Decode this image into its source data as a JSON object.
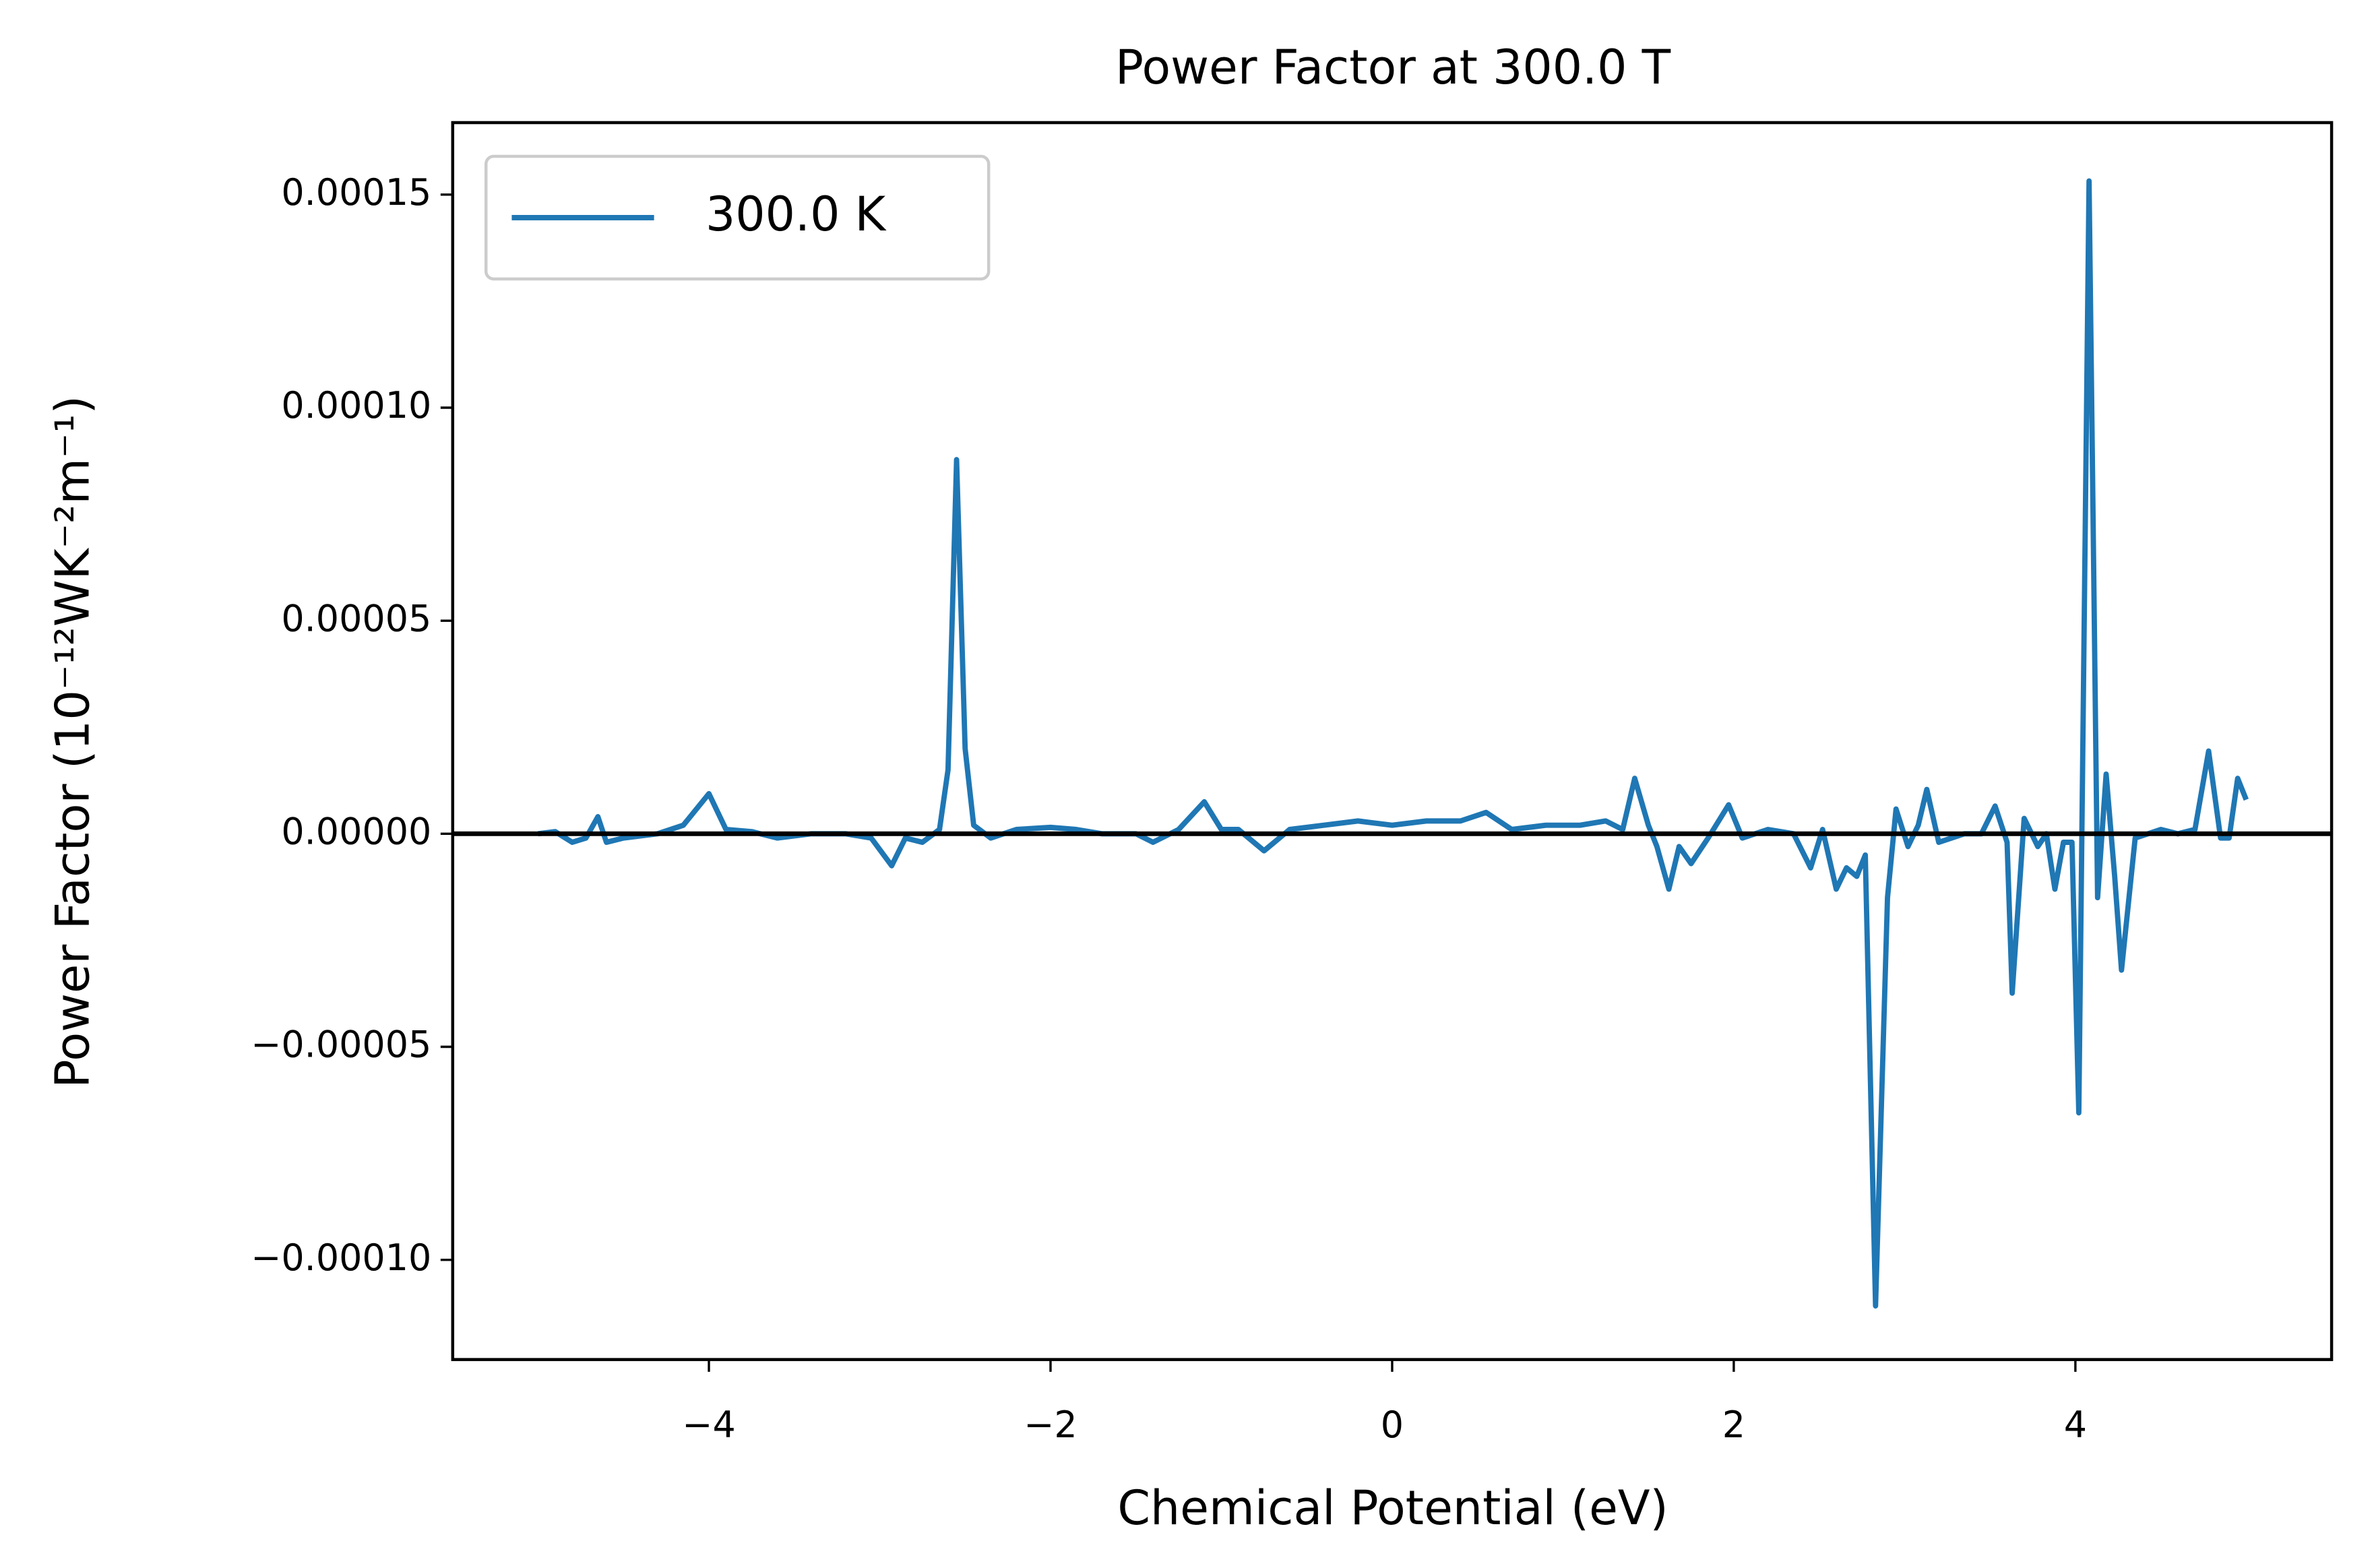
{
  "chart_data": {
    "type": "line",
    "title": "Power Factor at 300.0 T",
    "xlabel": "Chemical Potential (eV)",
    "ylabel": "Power Factor (10⁻¹²WK⁻²m⁻¹)",
    "x": [
      -5.0,
      -4.9,
      -4.8,
      -4.72,
      -4.65,
      -4.6,
      -4.5,
      -4.3,
      -4.15,
      -4.0,
      -3.9,
      -3.75,
      -3.6,
      -3.4,
      -3.2,
      -3.05,
      -2.93,
      -2.85,
      -2.75,
      -2.65,
      -2.6,
      -2.55,
      -2.5,
      -2.45,
      -2.35,
      -2.2,
      -2.0,
      -1.85,
      -1.7,
      -1.5,
      -1.4,
      -1.25,
      -1.1,
      -1.0,
      -0.9,
      -0.75,
      -0.6,
      -0.4,
      -0.2,
      0.0,
      0.2,
      0.4,
      0.55,
      0.7,
      0.9,
      1.1,
      1.25,
      1.35,
      1.42,
      1.5,
      1.55,
      1.62,
      1.68,
      1.75,
      1.85,
      1.97,
      2.05,
      2.2,
      2.35,
      2.45,
      2.52,
      2.6,
      2.66,
      2.72,
      2.77,
      2.83,
      2.9,
      2.95,
      3.02,
      3.08,
      3.13,
      3.2,
      3.35,
      3.45,
      3.53,
      3.6,
      3.63,
      3.7,
      3.78,
      3.83,
      3.88,
      3.93,
      3.98,
      4.02,
      4.08,
      4.13,
      4.18,
      4.23,
      4.27,
      4.35,
      4.5,
      4.6,
      4.7,
      4.78,
      4.85,
      4.9,
      4.95,
      5.0
    ],
    "series": [
      {
        "name": "300.0 K",
        "color": "#1f77b4",
        "values": [
          0,
          5e-07,
          -2e-06,
          -1e-06,
          4e-06,
          -2e-06,
          -1e-06,
          0,
          2e-06,
          9.4e-06,
          1e-06,
          5e-07,
          -1e-06,
          0,
          0,
          -1e-06,
          -7.5e-06,
          -1e-06,
          -2e-06,
          1e-06,
          1.5e-05,
          8.78e-05,
          2e-05,
          2e-06,
          -1e-06,
          1e-06,
          1.5e-06,
          1e-06,
          0,
          0,
          -2e-06,
          1e-06,
          7.5e-06,
          1e-06,
          1e-06,
          -4e-06,
          1e-06,
          2e-06,
          3e-06,
          2e-06,
          3e-06,
          3e-06,
          5e-06,
          1e-06,
          2e-06,
          2e-06,
          3e-06,
          1e-06,
          1.3e-05,
          2e-06,
          -3e-06,
          -1.3e-05,
          -3e-06,
          -7e-06,
          -1e-06,
          6.8e-06,
          -1e-06,
          1e-06,
          0,
          -8e-06,
          1e-06,
          -1.3e-05,
          -8e-06,
          -1e-05,
          -5e-06,
          -0.0001108,
          -1.5e-05,
          5.8e-06,
          -3e-06,
          2e-06,
          1.04e-05,
          -2e-06,
          0,
          0,
          6.5e-06,
          -2e-06,
          -3.74e-05,
          3.6e-06,
          -3e-06,
          0,
          -1.3e-05,
          -2e-06,
          -2e-06,
          -6.55e-05,
          0.0001532,
          -1.5e-05,
          1.4e-05,
          -1e-05,
          -3.2e-05,
          -1e-06,
          1e-06,
          0,
          1e-06,
          1.94e-05,
          -1e-06,
          -1e-06,
          1.3e-05,
          8e-06
        ]
      }
    ],
    "xlim": [
      -5.5,
      5.5
    ],
    "ylim": [
      -0.0001234,
      0.0001669
    ],
    "xticks": [
      {
        "value": -4,
        "label": "−4"
      },
      {
        "value": -2,
        "label": "−2"
      },
      0,
      2,
      4
    ],
    "yticks": [
      {
        "value": -0.0001,
        "label": "−0.00010"
      },
      {
        "value": -5e-05,
        "label": "−0.00005"
      },
      {
        "value": 0,
        "label": "0.00000"
      },
      {
        "value": 5e-05,
        "label": "0.00005"
      },
      {
        "value": 0.0001,
        "label": "0.00010"
      },
      0.00015
    ],
    "hlines": [
      0
    ],
    "hline_color": "#000000",
    "legend": "upper left",
    "grid": false
  }
}
